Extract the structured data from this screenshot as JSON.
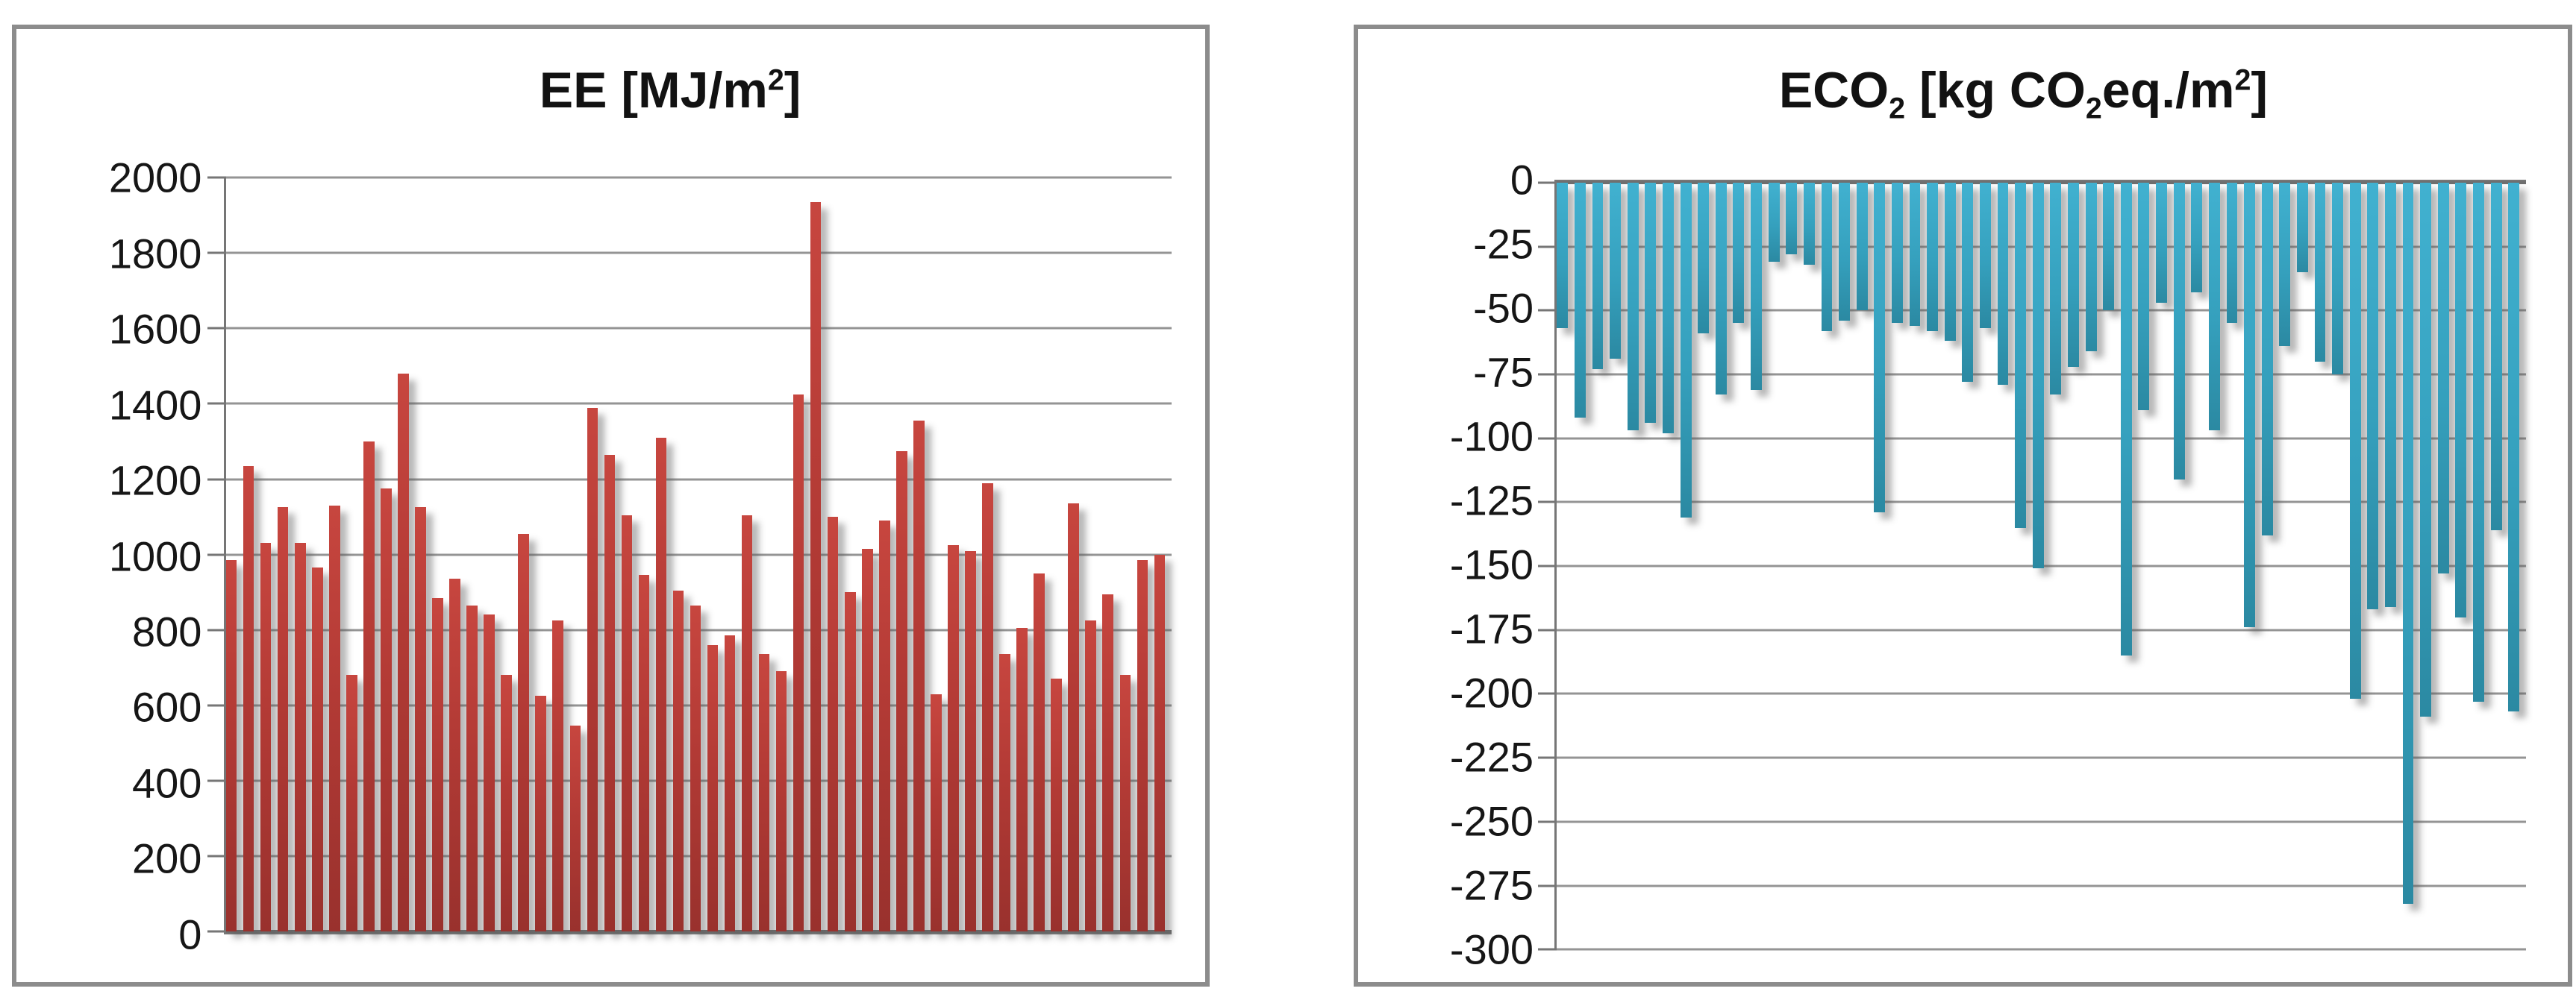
{
  "page": {
    "background": "#ffffff"
  },
  "chart_data": [
    {
      "type": "bar",
      "title": "EE [MJ/m²]",
      "title_segments": [
        {
          "text": "EE [MJ/m"
        },
        {
          "text": "2",
          "style": "sup"
        },
        {
          "text": "]"
        }
      ],
      "xlabel": "",
      "ylabel": "",
      "ylim": [
        0,
        2000
      ],
      "y_ticks": [
        2000,
        1800,
        1600,
        1400,
        1200,
        1000,
        800,
        600,
        400,
        200,
        0
      ],
      "grid": true,
      "legend_position": "none",
      "axis_side": "bottom",
      "bar_color_top": "#c7463f",
      "bar_color_mid": "#b23a35",
      "bar_color_bottom": "#99312d",
      "values": [
        985,
        1235,
        1030,
        1125,
        1030,
        965,
        1130,
        680,
        1300,
        1175,
        1480,
        1125,
        885,
        935,
        865,
        840,
        680,
        1055,
        625,
        825,
        545,
        1390,
        1265,
        1105,
        945,
        1310,
        905,
        865,
        760,
        785,
        1105,
        735,
        690,
        1425,
        1935,
        1100,
        900,
        1015,
        1090,
        1275,
        1355,
        630,
        1025,
        1010,
        1190,
        735,
        805,
        950,
        670,
        1135,
        825,
        895,
        680,
        985,
        1000
      ]
    },
    {
      "type": "bar",
      "title": "ECO₂ [kg CO₂eq./m²]",
      "title_segments": [
        {
          "text": "ECO"
        },
        {
          "text": "2",
          "style": "sub"
        },
        {
          "text": " [kg CO"
        },
        {
          "text": "2",
          "style": "sub"
        },
        {
          "text": "eq./m"
        },
        {
          "text": "2",
          "style": "sup"
        },
        {
          "text": "]"
        }
      ],
      "xlabel": "",
      "ylabel": "",
      "ylim": [
        -300,
        0
      ],
      "y_ticks": [
        0,
        -25,
        -50,
        -75,
        -100,
        -125,
        -150,
        -175,
        -200,
        -225,
        -250,
        -275,
        -300
      ],
      "grid": true,
      "legend_position": "none",
      "axis_side": "top",
      "bar_color_top": "#41b1d0",
      "bar_color_mid": "#35a0bd",
      "bar_color_bottom": "#2b89a2",
      "values": [
        -57,
        -92,
        -73,
        -69,
        -97,
        -94,
        -98,
        -131,
        -59,
        -83,
        -55,
        -81,
        -31,
        -28,
        -32,
        -58,
        -54,
        -50,
        -129,
        -55,
        -56,
        -58,
        -62,
        -78,
        -57,
        -79,
        -135,
        -151,
        -83,
        -72,
        -66,
        -50,
        -185,
        -89,
        -47,
        -116,
        -43,
        -97,
        -55,
        -174,
        -138,
        -64,
        -35,
        -70,
        -75,
        -202,
        -167,
        -166,
        -282,
        -209,
        -153,
        -170,
        -203,
        -136,
        -207
      ]
    }
  ]
}
